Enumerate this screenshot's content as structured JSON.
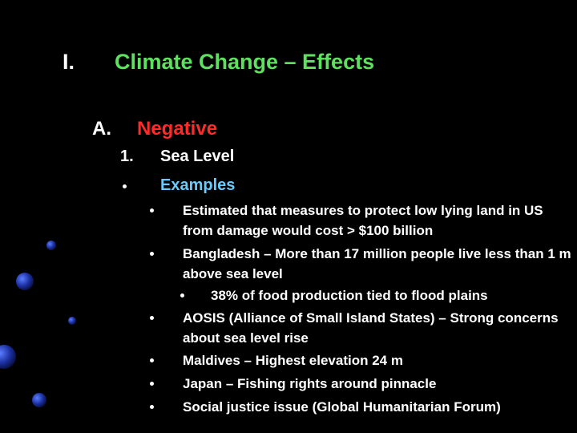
{
  "heading": {
    "number": "I.",
    "title": "Climate Change – Effects"
  },
  "section": {
    "number": "A.",
    "title": "Negative"
  },
  "subsection": {
    "number": "1.",
    "title": "Sea Level"
  },
  "examples": {
    "title": "Examples",
    "items": [
      "Estimated that measures to protect low lying land in US from damage would cost > $100 billion",
      "Bangladesh – More than 17 million people live less than 1 m above sea level",
      "38% of food production tied to flood plains",
      "AOSIS (Alliance of Small Island States) – Strong concerns about sea level rise",
      "Maldives – Highest elevation 24 m",
      "Japan – Fishing rights around pinnacle",
      "Social justice issue (Global Humanitarian Forum)"
    ]
  }
}
